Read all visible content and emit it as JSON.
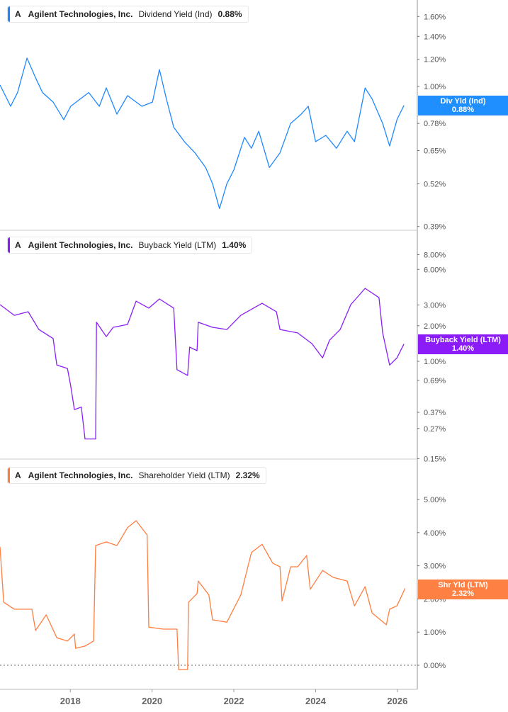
{
  "chart_data": [
    {
      "type": "line",
      "legend": {
        "ticker": "A",
        "company": "Agilent Technologies, Inc.",
        "metric": "Dividend Yield (Ind)",
        "value": "0.88%"
      },
      "last_tag": {
        "label": "Div Yld (Ind)",
        "value": "0.88%"
      },
      "color": "#1e88ff",
      "tag_color": "#1f8fff",
      "y_scale": "log",
      "ylim": [
        0.39,
        1.7
      ],
      "y_ticks": [
        {
          "v": 1.6,
          "label": "1.60%"
        },
        {
          "v": 1.4,
          "label": "1.40%"
        },
        {
          "v": 1.2,
          "label": "1.20%"
        },
        {
          "v": 1.0,
          "label": "1.00%"
        },
        {
          "v": 0.78,
          "label": "0.78%"
        },
        {
          "v": 0.65,
          "label": "0.65%"
        },
        {
          "v": 0.52,
          "label": "0.52%"
        },
        {
          "v": 0.39,
          "label": "0.39%"
        }
      ],
      "x": [
        2016.28,
        2016.54,
        2016.71,
        2016.94,
        2017.15,
        2017.32,
        2017.58,
        2017.84,
        2018.01,
        2018.45,
        2018.71,
        2018.88,
        2019.14,
        2019.4,
        2019.75,
        2020.01,
        2020.18,
        2020.35,
        2020.53,
        2020.79,
        2021.05,
        2021.31,
        2021.48,
        2021.65,
        2021.83,
        2022.0,
        2022.26,
        2022.43,
        2022.61,
        2022.87,
        2023.13,
        2023.39,
        2023.65,
        2023.82,
        2024.0,
        2024.25,
        2024.51,
        2024.77,
        2024.95,
        2025.21,
        2025.38,
        2025.64,
        2025.81,
        2025.99,
        2026.16
      ],
      "y": [
        1.01,
        0.875,
        0.96,
        1.21,
        1.06,
        0.96,
        0.9,
        0.8,
        0.875,
        0.96,
        0.875,
        0.99,
        0.83,
        0.94,
        0.875,
        0.9,
        1.12,
        0.92,
        0.76,
        0.69,
        0.64,
        0.58,
        0.52,
        0.44,
        0.52,
        0.57,
        0.71,
        0.66,
        0.74,
        0.58,
        0.64,
        0.78,
        0.83,
        0.875,
        0.69,
        0.72,
        0.66,
        0.74,
        0.69,
        0.99,
        0.92,
        0.78,
        0.67,
        0.8,
        0.88
      ]
    },
    {
      "type": "line",
      "legend": {
        "ticker": "A",
        "company": "Agilent Technologies, Inc.",
        "metric": "Buyback Yield (LTM)",
        "value": "1.40%"
      },
      "last_tag": {
        "label": "Buyback Yield (LTM)",
        "value": "1.40%"
      },
      "color": "#8a1ef5",
      "tag_color": "#8b1cf7",
      "y_scale": "log",
      "ylim": [
        0.15,
        10
      ],
      "y_ticks": [
        {
          "v": 8,
          "label": "8.00%"
        },
        {
          "v": 6,
          "label": "6.00%"
        },
        {
          "v": 3,
          "label": "3.00%"
        },
        {
          "v": 2,
          "label": "2.00%"
        },
        {
          "v": 1,
          "label": "1.00%"
        },
        {
          "v": 0.69,
          "label": "0.69%"
        },
        {
          "v": 0.37,
          "label": "0.37%"
        },
        {
          "v": 0.27,
          "label": "0.27%"
        },
        {
          "v": 0.15,
          "label": "0.15%"
        }
      ],
      "x": [
        2016.28,
        2016.63,
        2016.97,
        2017.23,
        2017.58,
        2017.67,
        2017.93,
        2018.01,
        2018.1,
        2018.27,
        2018.36,
        2018.62,
        2018.64,
        2018.88,
        2019.05,
        2019.4,
        2019.61,
        2019.92,
        2020.18,
        2020.53,
        2020.61,
        2020.87,
        2020.92,
        2021.1,
        2021.13,
        2021.48,
        2021.83,
        2022.17,
        2022.69,
        2023.04,
        2023.13,
        2023.56,
        2023.91,
        2024.17,
        2024.34,
        2024.6,
        2024.86,
        2025.21,
        2025.55,
        2025.64,
        2025.81,
        2025.99,
        2026.16
      ],
      "y": [
        3.02,
        2.45,
        2.63,
        1.86,
        1.56,
        0.93,
        0.87,
        0.62,
        0.39,
        0.41,
        0.22,
        0.22,
        2.14,
        1.62,
        1.94,
        2.05,
        3.23,
        2.82,
        3.37,
        2.82,
        0.85,
        0.76,
        1.32,
        1.23,
        2.14,
        1.94,
        1.86,
        2.45,
        3.1,
        2.63,
        1.86,
        1.74,
        1.41,
        1.07,
        1.51,
        1.86,
        3.02,
        4.15,
        3.46,
        1.74,
        0.93,
        1.07,
        1.4
      ]
    },
    {
      "type": "line",
      "legend": {
        "ticker": "A",
        "company": "Agilent Technologies, Inc.",
        "metric": "Shareholder Yield (LTM)",
        "value": "2.32%"
      },
      "last_tag": {
        "label": "Shr Yld (LTM)",
        "value": "2.32%"
      },
      "color": "#ff7d3f",
      "tag_color": "#ff8043",
      "y_scale": "linear",
      "ylim": [
        -0.5,
        5.8
      ],
      "zero_line": true,
      "y_ticks": [
        {
          "v": 5,
          "label": "5.00%"
        },
        {
          "v": 4,
          "label": "4.00%"
        },
        {
          "v": 3,
          "label": "3.00%"
        },
        {
          "v": 2,
          "label": "2.00%"
        },
        {
          "v": 1,
          "label": "1.00%"
        },
        {
          "v": 0,
          "label": "0.00%"
        }
      ],
      "x": [
        2016.28,
        2016.37,
        2016.63,
        2017.06,
        2017.15,
        2017.41,
        2017.67,
        2017.93,
        2018.1,
        2018.13,
        2018.36,
        2018.57,
        2018.62,
        2018.88,
        2019.14,
        2019.4,
        2019.61,
        2019.88,
        2019.92,
        2020.27,
        2020.61,
        2020.65,
        2020.87,
        2020.89,
        2021.1,
        2021.13,
        2021.39,
        2021.48,
        2021.83,
        2022.17,
        2022.43,
        2022.69,
        2022.95,
        2023.13,
        2023.18,
        2023.39,
        2023.56,
        2023.78,
        2023.87,
        2024.17,
        2024.43,
        2024.77,
        2024.95,
        2025.21,
        2025.38,
        2025.73,
        2025.81,
        2025.99,
        2026.19
      ],
      "y": [
        3.57,
        1.9,
        1.69,
        1.69,
        1.05,
        1.52,
        0.83,
        0.73,
        0.94,
        0.51,
        0.58,
        0.73,
        3.61,
        3.72,
        3.61,
        4.15,
        4.36,
        3.93,
        1.15,
        1.09,
        1.09,
        -0.13,
        -0.13,
        1.9,
        2.16,
        2.54,
        2.12,
        1.37,
        1.3,
        2.12,
        3.4,
        3.65,
        3.08,
        2.97,
        1.94,
        2.97,
        2.97,
        3.31,
        2.29,
        2.86,
        2.65,
        2.54,
        1.79,
        2.37,
        1.58,
        1.22,
        1.69,
        1.79,
        2.32
      ]
    }
  ],
  "x_axis": {
    "ticks": [
      {
        "v": 2018,
        "label": "2018"
      },
      {
        "v": 2020,
        "label": "2020"
      },
      {
        "v": 2022,
        "label": "2022"
      },
      {
        "v": 2024,
        "label": "2024"
      },
      {
        "v": 2026,
        "label": "2026"
      }
    ],
    "xlim": [
      2016.28,
      2026.5
    ]
  }
}
